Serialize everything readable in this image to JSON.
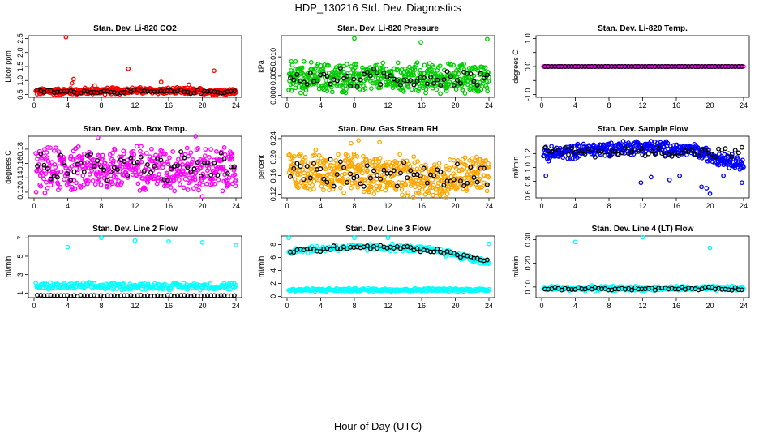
{
  "page": {
    "title": "HDP_130216  Std. Dev. Diagnostics",
    "footer": "Hour of Day (UTC)"
  },
  "colors": {
    "black": "#000000",
    "red": "#ff0000",
    "green": "#00cc00",
    "magenta": "#ff00ff",
    "orange": "#ffa500",
    "blue": "#0000ff",
    "cyan": "#00ffff"
  },
  "chart_data": [
    {
      "type": "scatter",
      "title": "Stan. Dev. Li-820 CO2",
      "ylabel": "Licor ppm",
      "xlim": [
        0,
        24
      ],
      "ylim": [
        0.4,
        2.6
      ],
      "x_ticks": [
        0,
        4,
        8,
        12,
        16,
        20,
        24
      ],
      "y_ticks": [
        0.5,
        1.0,
        1.5,
        2.0,
        2.5
      ],
      "y_tick_labels": [
        "0.5",
        "1.0",
        "1.5",
        "2.0",
        "2.5"
      ],
      "main_color": "#ff0000",
      "main": {
        "base": 0.62,
        "noise": 0.14,
        "n": 420,
        "trend": [
          0.6,
          0.62,
          0.64,
          0.62,
          0.6
        ],
        "extras": [
          [
            3.8,
            2.55
          ],
          [
            4.5,
            0.9
          ],
          [
            4.7,
            1.05
          ],
          [
            11.2,
            1.42
          ],
          [
            15.1,
            0.95
          ],
          [
            21.4,
            1.35
          ],
          [
            7.2,
            0.82
          ],
          [
            18.4,
            0.85
          ]
        ]
      },
      "overlay": {
        "base": 0.6,
        "noise": 0.08,
        "n": 60
      }
    },
    {
      "type": "scatter",
      "title": "Stan. Dev. Li-820 Pressure",
      "ylabel": "kPa",
      "xlim": [
        0,
        24
      ],
      "ylim": [
        -0.0005,
        0.0155
      ],
      "x_ticks": [
        0,
        4,
        8,
        12,
        16,
        20,
        24
      ],
      "y_ticks": [
        0.0,
        0.005,
        0.01
      ],
      "y_tick_labels": [
        "0.000",
        "0.005",
        "0.010"
      ],
      "main_color": "#00cc00",
      "main": {
        "base": 0.0045,
        "noise": 0.0045,
        "n": 520,
        "trend": [
          0.0045,
          0.0045,
          0.0045,
          0.0045,
          0.0045
        ],
        "extras": [
          [
            8.0,
            0.0148
          ],
          [
            15.9,
            0.0138
          ],
          [
            23.8,
            0.0146
          ],
          [
            0.5,
            0.0088
          ],
          [
            1.0,
            0.0088
          ],
          [
            2.0,
            0.0088
          ]
        ]
      },
      "overlay": {
        "base": 0.0045,
        "noise": 0.003,
        "n": 60
      }
    },
    {
      "type": "scatter",
      "title": "Stan. Dev. Li-820 Temp.",
      "ylabel": "degrees C",
      "xlim": [
        0,
        24
      ],
      "ylim": [
        -1.1,
        1.1
      ],
      "x_ticks": [
        0,
        4,
        8,
        12,
        16,
        20,
        24
      ],
      "y_ticks": [
        -1.0,
        -0.5,
        0.0,
        0.5,
        1.0
      ],
      "y_tick_labels": [
        "-1.0",
        "",
        "0.0",
        "",
        "1.0"
      ],
      "main_color": "#ff00ff",
      "main": {
        "base": 0.0,
        "noise": 0.0,
        "n": 140,
        "trend": [
          0,
          0,
          0,
          0,
          0
        ],
        "extras": []
      },
      "overlay": {
        "base": 0.0,
        "noise": 0.0,
        "n": 60
      }
    },
    {
      "type": "scatter",
      "title": "Stan. Dev. Amb. Box Temp.",
      "ylabel": "degrees C",
      "xlim": [
        0,
        24
      ],
      "ylim": [
        0.112,
        0.198
      ],
      "x_ticks": [
        0,
        4,
        8,
        12,
        16,
        20,
        24
      ],
      "y_ticks": [
        0.12,
        0.14,
        0.16,
        0.18
      ],
      "y_tick_labels": [
        "0.12",
        "0.14",
        "0.16",
        "0.18"
      ],
      "main_color": "#ff00ff",
      "main": {
        "base": 0.152,
        "noise": 0.036,
        "n": 480,
        "trend": [
          0.15,
          0.152,
          0.155,
          0.152,
          0.15
        ],
        "extras": [
          [
            19.2,
            0.198
          ],
          [
            20.0,
            0.114
          ],
          [
            7.6,
            0.196
          ]
        ]
      },
      "overlay": {
        "base": 0.155,
        "noise": 0.026,
        "n": 60
      }
    },
    {
      "type": "scatter",
      "title": "Stan. Dev. Gas Stream RH",
      "ylabel": "percent",
      "xlim": [
        0,
        24
      ],
      "ylim": [
        0.112,
        0.245
      ],
      "x_ticks": [
        0,
        4,
        8,
        12,
        16,
        20,
        24
      ],
      "y_ticks": [
        0.12,
        0.16,
        0.2,
        0.24
      ],
      "y_tick_labels": [
        "0.12",
        "0.16",
        "0.20",
        "0.24"
      ],
      "main_color": "#ffa500",
      "main": {
        "base": 0.165,
        "noise": 0.05,
        "n": 520,
        "trend": [
          0.17,
          0.17,
          0.16,
          0.152,
          0.168
        ],
        "extras": [
          [
            8.5,
            0.236
          ],
          [
            11.0,
            0.232
          ],
          [
            7.6,
            0.23
          ]
        ]
      },
      "overlay": {
        "base": 0.165,
        "noise": 0.035,
        "n": 60
      }
    },
    {
      "type": "scatter",
      "title": "Stan. Dev. Sample Flow",
      "ylabel": "ml/min",
      "xlim": [
        0,
        24
      ],
      "ylim": [
        0.56,
        1.45
      ],
      "x_ticks": [
        0,
        4,
        8,
        12,
        16,
        20,
        24
      ],
      "y_ticks": [
        0.6,
        0.8,
        1.0,
        1.2
      ],
      "y_tick_labels": [
        "0.6",
        "0.8",
        "1.0",
        "1.2"
      ],
      "main_color": "#0000ff",
      "main": {
        "base": 1.25,
        "noise": 0.12,
        "n": 420,
        "trend": [
          1.18,
          1.26,
          1.3,
          1.24,
          1.05
        ],
        "extras": [
          [
            0.5,
            0.88
          ],
          [
            11.8,
            0.78
          ],
          [
            15.2,
            0.82
          ],
          [
            16.4,
            0.88
          ],
          [
            19.0,
            0.72
          ],
          [
            19.6,
            0.7
          ],
          [
            20.0,
            0.62
          ],
          [
            21.6,
            0.88
          ],
          [
            23.8,
            0.78
          ],
          [
            13.0,
            0.86
          ]
        ]
      },
      "overlay": {
        "base": 1.22,
        "noise": 0.1,
        "n": 60
      }
    },
    {
      "type": "scatter",
      "title": "Stan. Dev. Line 2 Flow",
      "ylabel": "ml/min",
      "xlim": [
        0,
        24
      ],
      "ylim": [
        0.5,
        7.2
      ],
      "x_ticks": [
        0,
        4,
        8,
        12,
        16,
        20,
        24
      ],
      "y_ticks": [
        1,
        3,
        5,
        7
      ],
      "y_tick_labels": [
        "1",
        "3",
        "5",
        "7"
      ],
      "main_color": "#00ffff",
      "main": {
        "base": 1.75,
        "noise": 0.45,
        "n": 220,
        "trend": [
          1.75,
          1.75,
          1.75,
          1.75,
          1.75
        ],
        "extras": [
          [
            4.0,
            6.0
          ],
          [
            8.0,
            7.0
          ],
          [
            12.0,
            6.7
          ],
          [
            16.0,
            6.6
          ],
          [
            20.0,
            6.5
          ],
          [
            24.0,
            6.2
          ]
        ]
      },
      "overlay": {
        "base": 0.72,
        "noise": 0.05,
        "n": 60
      }
    },
    {
      "type": "scatter",
      "title": "Stan. Dev. Line 3 Flow",
      "ylabel": "ml/min",
      "xlim": [
        0,
        24
      ],
      "ylim": [
        -0.2,
        9.3
      ],
      "x_ticks": [
        0,
        4,
        8,
        12,
        16,
        20,
        24
      ],
      "y_ticks": [
        0,
        2,
        4,
        6,
        8
      ],
      "y_tick_labels": [
        "0",
        "2",
        "4",
        "6",
        "8"
      ],
      "main_color": "#00ffff",
      "main": {
        "base": 1.0,
        "noise": 0.3,
        "n": 260,
        "trend": [
          1,
          1,
          1,
          1,
          1
        ],
        "extras": [
          [
            0.2,
            9.0
          ],
          [
            0.6,
            6.8
          ],
          [
            1.0,
            7.4
          ],
          [
            8.0,
            9.0
          ],
          [
            12.0,
            9.0
          ],
          [
            24.0,
            8.1
          ]
        ]
      },
      "upper": {
        "trend": [
          7.0,
          7.5,
          7.6,
          7.0,
          5.2
        ],
        "noise": 0.7,
        "n": 200
      },
      "overlay": {
        "trend": [
          6.9,
          7.5,
          7.6,
          7.0,
          5.4
        ],
        "noise": 0.45,
        "n": 60
      }
    },
    {
      "type": "scatter",
      "title": "Stan. Dev. Line 4 (LT) Flow",
      "ylabel": "ml/min",
      "xlim": [
        0,
        24
      ],
      "ylim": [
        0.055,
        0.315
      ],
      "x_ticks": [
        0,
        4,
        8,
        12,
        16,
        20,
        24
      ],
      "y_ticks": [
        0.1,
        0.2,
        0.3
      ],
      "y_tick_labels": [
        "0.10",
        "0.20",
        "0.30"
      ],
      "main_color": "#00ffff",
      "main": {
        "base": 0.094,
        "noise": 0.012,
        "n": 240,
        "trend": [
          0.094,
          0.094,
          0.094,
          0.094,
          0.094
        ],
        "extras": [
          [
            4.0,
            0.29
          ],
          [
            12.0,
            0.31
          ],
          [
            20.0,
            0.265
          ]
        ]
      },
      "overlay": {
        "base": 0.093,
        "noise": 0.008,
        "n": 60
      }
    }
  ]
}
